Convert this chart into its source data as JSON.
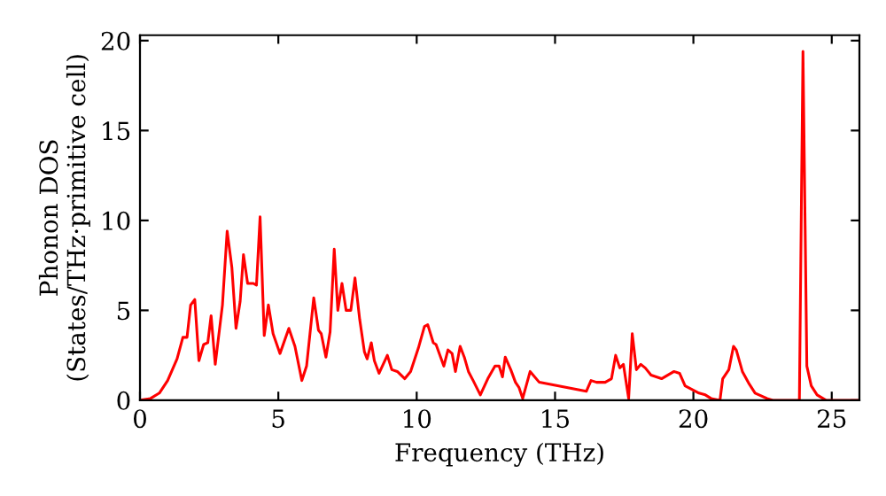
{
  "chart_data": {
    "type": "line",
    "xlabel": "Frequency (THz)",
    "ylabel": "Phonon DOS\n(States/THz·primitive cell)",
    "xlim": [
      0,
      26
    ],
    "ylim": [
      0,
      20.3
    ],
    "xticks": [
      0,
      5,
      10,
      15,
      20,
      25
    ],
    "yticks": [
      0,
      5,
      10,
      15,
      20
    ],
    "grid": false,
    "legend": false,
    "marker": "none",
    "line_style": "solid",
    "series": [
      {
        "color": "#ff0000",
        "x": [
          0,
          0.38,
          0.7,
          1.0,
          1.34,
          1.55,
          1.7,
          1.83,
          1.98,
          2.13,
          2.3,
          2.45,
          2.57,
          2.72,
          2.98,
          3.15,
          3.32,
          3.47,
          3.62,
          3.74,
          3.89,
          4.1,
          4.21,
          4.34,
          4.49,
          4.64,
          4.81,
          5.06,
          5.38,
          5.6,
          5.85,
          6.02,
          6.28,
          6.45,
          6.55,
          6.72,
          6.87,
          7.02,
          7.15,
          7.3,
          7.45,
          7.62,
          7.77,
          7.94,
          8.11,
          8.21,
          8.36,
          8.47,
          8.64,
          8.94,
          9.1,
          9.3,
          9.57,
          9.78,
          10.06,
          10.28,
          10.4,
          10.6,
          10.7,
          10.98,
          11.13,
          11.28,
          11.4,
          11.57,
          11.72,
          11.87,
          12.04,
          12.3,
          12.57,
          12.83,
          12.98,
          13.1,
          13.2,
          13.4,
          13.57,
          13.7,
          13.83,
          14.1,
          14.43,
          16.13,
          16.3,
          16.5,
          16.81,
          17.04,
          17.19,
          17.34,
          17.47,
          17.66,
          17.79,
          17.94,
          18.1,
          18.26,
          18.47,
          18.85,
          19.3,
          19.5,
          19.7,
          20.2,
          20.43,
          20.64,
          20.96,
          21.06,
          21.28,
          21.45,
          21.55,
          21.77,
          22.02,
          22.23,
          22.66,
          22.87,
          23.83,
          23.96,
          24.1,
          24.26,
          24.47,
          24.79,
          25.96
        ],
        "values": [
          0,
          0.1,
          0.4,
          1.1,
          2.3,
          3.5,
          3.5,
          5.3,
          5.6,
          2.2,
          3.1,
          3.2,
          4.7,
          2.0,
          5.3,
          9.4,
          7.4,
          4.0,
          5.5,
          8.1,
          6.5,
          6.5,
          6.4,
          10.2,
          3.6,
          5.3,
          3.7,
          2.6,
          4.0,
          3.0,
          1.1,
          1.9,
          5.7,
          3.9,
          3.7,
          2.4,
          3.8,
          8.4,
          5.0,
          6.5,
          5.0,
          5.0,
          6.8,
          4.5,
          2.7,
          2.3,
          3.2,
          2.2,
          1.5,
          2.5,
          1.7,
          1.6,
          1.2,
          1.6,
          2.9,
          4.1,
          4.2,
          3.2,
          3.1,
          1.9,
          2.8,
          2.6,
          1.6,
          3.0,
          2.4,
          1.6,
          1.1,
          0.3,
          1.2,
          1.9,
          1.9,
          1.3,
          2.4,
          1.7,
          1.0,
          0.7,
          0.1,
          1.6,
          1.0,
          0.5,
          1.1,
          1.0,
          1.0,
          1.2,
          2.5,
          1.8,
          2.0,
          0.1,
          3.7,
          1.7,
          2.0,
          1.8,
          1.4,
          1.2,
          1.6,
          1.5,
          0.8,
          0.4,
          0.3,
          0.1,
          0,
          1.2,
          1.7,
          3.0,
          2.8,
          1.6,
          0.9,
          0.4,
          0.1,
          0,
          0,
          19.4,
          1.9,
          0.8,
          0.3,
          0,
          0
        ]
      }
    ]
  }
}
